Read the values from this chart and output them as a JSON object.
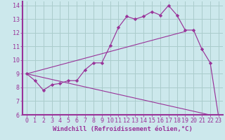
{
  "xlabel": "Windchill (Refroidissement éolien,°C)",
  "background_color": "#cce8ec",
  "grid_color": "#aacccc",
  "line_color": "#993399",
  "axis_bar_color": "#993399",
  "xlim": [
    -0.5,
    23.5
  ],
  "ylim": [
    6,
    14.3
  ],
  "yticks": [
    6,
    7,
    8,
    9,
    10,
    11,
    12,
    13,
    14
  ],
  "xticks": [
    0,
    1,
    2,
    3,
    4,
    5,
    6,
    7,
    8,
    9,
    10,
    11,
    12,
    13,
    14,
    15,
    16,
    17,
    18,
    19,
    20,
    21,
    22,
    23
  ],
  "curve1_x": [
    0,
    1,
    2,
    3,
    4,
    5,
    6,
    7,
    8,
    9,
    10,
    11,
    12,
    13,
    14,
    15,
    16,
    17,
    18,
    19,
    20,
    21,
    22,
    23
  ],
  "curve1_y": [
    9.0,
    8.5,
    7.8,
    8.2,
    8.3,
    8.5,
    8.5,
    9.3,
    9.8,
    9.8,
    11.05,
    12.4,
    13.2,
    13.0,
    13.2,
    13.55,
    13.3,
    14.0,
    13.3,
    12.2,
    12.2,
    10.8,
    9.8,
    5.85
  ],
  "curve2_x": [
    0,
    19
  ],
  "curve2_y": [
    9.0,
    12.1
  ],
  "curve3_x": [
    0,
    23
  ],
  "curve3_y": [
    9.0,
    5.85
  ],
  "xlabel_fontsize": 6.5,
  "tick_fontsize": 6.0
}
